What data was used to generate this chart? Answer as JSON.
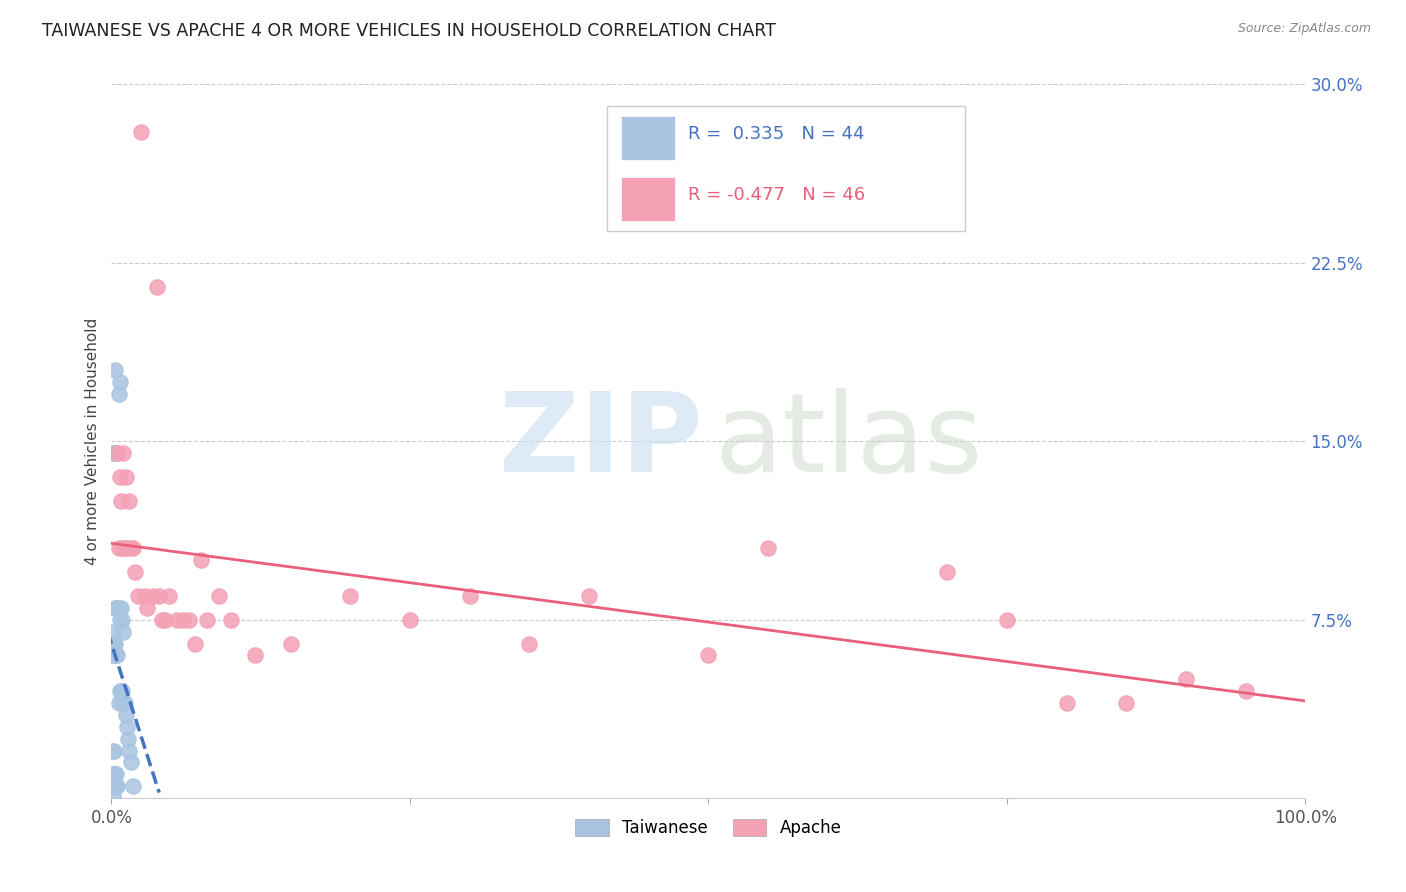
{
  "title": "TAIWANESE VS APACHE 4 OR MORE VEHICLES IN HOUSEHOLD CORRELATION CHART",
  "source": "Source: ZipAtlas.com",
  "ylabel": "4 or more Vehicles in Household",
  "xlim": [
    0.0,
    1.0
  ],
  "ylim": [
    0.0,
    0.3
  ],
  "yticks": [
    0.0,
    0.075,
    0.15,
    0.225,
    0.3
  ],
  "yticklabels": [
    "",
    "7.5%",
    "15.0%",
    "22.5%",
    "30.0%"
  ],
  "xtick_positions": [
    0.0,
    0.25,
    0.5,
    0.75,
    1.0
  ],
  "xticklabels": [
    "0.0%",
    "",
    "",
    "",
    "100.0%"
  ],
  "taiwanese_R": 0.335,
  "taiwanese_N": 44,
  "apache_R": -0.477,
  "apache_N": 46,
  "taiwanese_color": "#a8c4e0",
  "apache_color": "#f4a0b5",
  "taiwanese_line_color": "#4472c4",
  "apache_line_color": "#e8607a",
  "background_color": "#ffffff",
  "taiwanese_x": [
    0.001,
    0.001,
    0.001,
    0.001,
    0.001,
    0.001,
    0.001,
    0.002,
    0.002,
    0.002,
    0.002,
    0.002,
    0.003,
    0.003,
    0.003,
    0.003,
    0.003,
    0.004,
    0.004,
    0.004,
    0.004,
    0.005,
    0.005,
    0.005,
    0.005,
    0.006,
    0.006,
    0.006,
    0.007,
    0.007,
    0.007,
    0.008,
    0.008,
    0.009,
    0.009,
    0.01,
    0.01,
    0.011,
    0.012,
    0.013,
    0.014,
    0.015,
    0.016,
    0.018
  ],
  "taiwanese_y": [
    0.001,
    0.005,
    0.01,
    0.02,
    0.06,
    0.07,
    0.145,
    0.005,
    0.01,
    0.02,
    0.065,
    0.145,
    0.005,
    0.01,
    0.065,
    0.08,
    0.18,
    0.005,
    0.01,
    0.06,
    0.08,
    0.005,
    0.06,
    0.08,
    0.145,
    0.04,
    0.08,
    0.17,
    0.045,
    0.075,
    0.175,
    0.045,
    0.08,
    0.045,
    0.075,
    0.04,
    0.07,
    0.04,
    0.035,
    0.03,
    0.025,
    0.02,
    0.015,
    0.005
  ],
  "apache_x": [
    0.005,
    0.006,
    0.007,
    0.008,
    0.009,
    0.01,
    0.011,
    0.012,
    0.013,
    0.015,
    0.016,
    0.018,
    0.02,
    0.022,
    0.025,
    0.028,
    0.03,
    0.035,
    0.038,
    0.04,
    0.042,
    0.045,
    0.048,
    0.055,
    0.06,
    0.065,
    0.07,
    0.075,
    0.08,
    0.09,
    0.1,
    0.12,
    0.15,
    0.2,
    0.25,
    0.3,
    0.35,
    0.4,
    0.5,
    0.55,
    0.7,
    0.75,
    0.8,
    0.85,
    0.9,
    0.95
  ],
  "apache_y": [
    0.145,
    0.105,
    0.135,
    0.125,
    0.105,
    0.145,
    0.105,
    0.135,
    0.105,
    0.125,
    0.105,
    0.105,
    0.095,
    0.085,
    0.28,
    0.085,
    0.08,
    0.085,
    0.215,
    0.085,
    0.075,
    0.075,
    0.085,
    0.075,
    0.075,
    0.075,
    0.065,
    0.1,
    0.075,
    0.085,
    0.075,
    0.06,
    0.065,
    0.085,
    0.075,
    0.085,
    0.065,
    0.085,
    0.06,
    0.105,
    0.095,
    0.075,
    0.04,
    0.04,
    0.05,
    0.045
  ]
}
